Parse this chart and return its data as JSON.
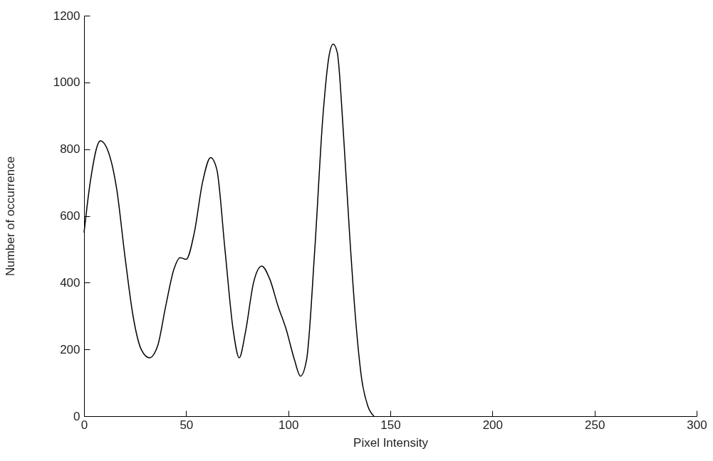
{
  "chart_data": {
    "type": "line",
    "xlabel": "Pixel Intensity",
    "ylabel": "Number of occurrence",
    "x": [
      0,
      3,
      8,
      12,
      16,
      20,
      24,
      28,
      32,
      36,
      40,
      44,
      47,
      50,
      54,
      58,
      62,
      65,
      69,
      73,
      76,
      79,
      83,
      87,
      91,
      95,
      99,
      103,
      106,
      109,
      113,
      117,
      120,
      122,
      124,
      127,
      130,
      133,
      136,
      139,
      142
    ],
    "series": [
      {
        "color": "#000000",
        "values": [
          550,
          700,
          825,
          790,
          680,
          480,
          300,
          200,
          175,
          210,
          330,
          440,
          475,
          470,
          550,
          700,
          775,
          740,
          500,
          260,
          175,
          250,
          400,
          450,
          410,
          330,
          260,
          170,
          120,
          170,
          500,
          900,
          1080,
          1115,
          1090,
          850,
          550,
          290,
          110,
          30,
          0
        ]
      }
    ],
    "xlim": [
      0,
      300
    ],
    "xticks": [
      0,
      50,
      100,
      150,
      200,
      250,
      300
    ],
    "ylim": [
      0,
      1200
    ],
    "yticks": [
      0,
      200,
      400,
      600,
      800,
      1000,
      1200
    ],
    "grid": false,
    "marker": "none",
    "line_style": "solid"
  }
}
